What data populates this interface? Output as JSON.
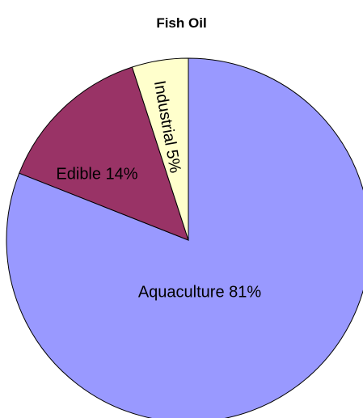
{
  "chart_data": {
    "type": "pie",
    "title": "Fish Oil",
    "slices": [
      {
        "label": "Aquaculture 81%",
        "name": "Aquaculture",
        "value": 81,
        "color": "#9999ff"
      },
      {
        "label": "Edible 14%",
        "name": "Edible",
        "value": 14,
        "color": "#993366"
      },
      {
        "label": "Industrial 5%",
        "name": "Industrial",
        "value": 5,
        "color": "#ffffcc"
      }
    ],
    "start_angle": "12 o'clock",
    "direction": "clockwise",
    "legend": "none"
  }
}
